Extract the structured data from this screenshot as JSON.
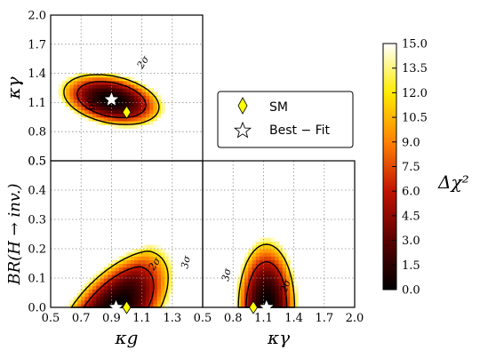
{
  "chart_data": {
    "type": "heatmap",
    "colorbar": {
      "label": "Δχ²",
      "ticks": [
        "15.0",
        "13.5",
        "12.0",
        "10.5",
        "9.0",
        "7.5",
        "6.0",
        "4.5",
        "3.0",
        "1.5",
        "0.0"
      ],
      "range": [
        0,
        15
      ]
    },
    "legend": {
      "position": "right of top-left panel",
      "entries": [
        {
          "label": "SM",
          "marker": "diamond",
          "color": "#ffff00"
        },
        {
          "label": "Best − Fit",
          "marker": "star",
          "color": "#ffffff"
        }
      ]
    },
    "panels": [
      {
        "id": "kg-kgamma",
        "xlabel": "",
        "ylabel": "κγ",
        "xlim": [
          0.5,
          1.5
        ],
        "ylim": [
          0.5,
          2.0
        ],
        "yticks": [
          "0.5",
          "0.8",
          "1.1",
          "1.4",
          "1.7",
          "2.0"
        ],
        "best_fit": {
          "x": 0.9,
          "y": 1.13
        },
        "sm": {
          "x": 1.0,
          "y": 1.0
        },
        "contour_labels": [
          "2σ",
          "3σ"
        ],
        "grid": true
      },
      {
        "id": "kg-br",
        "xlabel": "κg",
        "ylabel": "BR(H → inv.)",
        "xlim": [
          0.5,
          1.5
        ],
        "ylim": [
          0.0,
          0.5
        ],
        "xticks": [
          "0.5",
          "0.7",
          "0.9",
          "1.1",
          "1.3",
          "1.5"
        ],
        "yticks": [
          "0.0",
          "0.1",
          "0.2",
          "0.3",
          "0.4",
          "0.5"
        ],
        "best_fit": {
          "x": 0.93,
          "y": 0.0
        },
        "sm": {
          "x": 1.0,
          "y": 0.0
        },
        "contour_labels": [
          "2σ",
          "3σ"
        ],
        "grid": true
      },
      {
        "id": "kgamma-br",
        "xlabel": "κγ",
        "ylabel": "",
        "xlim": [
          0.5,
          2.0
        ],
        "ylim": [
          0.0,
          0.5
        ],
        "xticks": [
          "0.5",
          "0.8",
          "1.1",
          "1.4",
          "1.7",
          "2.0"
        ],
        "best_fit": {
          "x": 1.13,
          "y": 0.0
        },
        "sm": {
          "x": 1.0,
          "y": 0.0
        },
        "contour_labels": [
          "2σ",
          "3σ"
        ],
        "grid": true
      }
    ]
  }
}
